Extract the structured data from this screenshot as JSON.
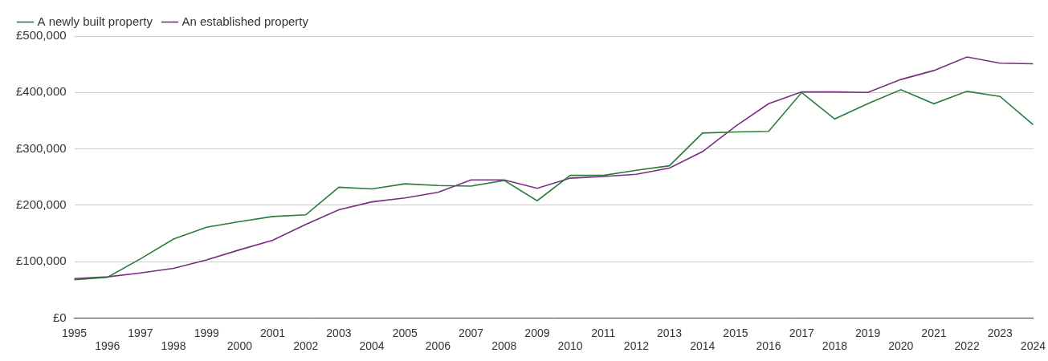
{
  "chart_data": {
    "type": "line",
    "categories": [
      "1995",
      "1996",
      "1997",
      "1998",
      "1999",
      "2000",
      "2001",
      "2002",
      "2003",
      "2004",
      "2005",
      "2006",
      "2007",
      "2008",
      "2009",
      "2010",
      "2011",
      "2012",
      "2013",
      "2014",
      "2015",
      "2016",
      "2017",
      "2018",
      "2019",
      "2020",
      "2021",
      "2022",
      "2023",
      "2024"
    ],
    "series": [
      {
        "name": "A newly built property",
        "color": "#2b7b3a",
        "marker": "none",
        "line_style": "solid",
        "values": [
          68000,
          72000,
          105000,
          140000,
          161000,
          171000,
          180000,
          183000,
          232000,
          229000,
          238000,
          235000,
          234000,
          244000,
          208000,
          253000,
          253000,
          262000,
          270000,
          328000,
          330000,
          331000,
          400000,
          353000,
          380000,
          405000,
          380000,
          402000,
          393000,
          343000
        ]
      },
      {
        "name": "An established property",
        "color": "#7a2c82",
        "marker": "none",
        "line_style": "solid",
        "values": [
          70000,
          73000,
          80000,
          88000,
          103000,
          121000,
          138000,
          166000,
          192000,
          206000,
          213000,
          223000,
          245000,
          245000,
          230000,
          248000,
          251000,
          255000,
          266000,
          295000,
          340000,
          380000,
          401000,
          401000,
          400000,
          423000,
          439000,
          463000,
          452000,
          451000
        ]
      }
    ],
    "ylim": [
      0,
      500000
    ],
    "yticks": [
      {
        "value": 0,
        "label": "£0"
      },
      {
        "value": 100000,
        "label": "£100,000"
      },
      {
        "value": 200000,
        "label": "£200,000"
      },
      {
        "value": 300000,
        "label": "£300,000"
      },
      {
        "value": 400000,
        "label": "£400,000"
      },
      {
        "value": 500000,
        "label": "£500,000"
      }
    ],
    "grid": true,
    "legend": "top-left"
  }
}
